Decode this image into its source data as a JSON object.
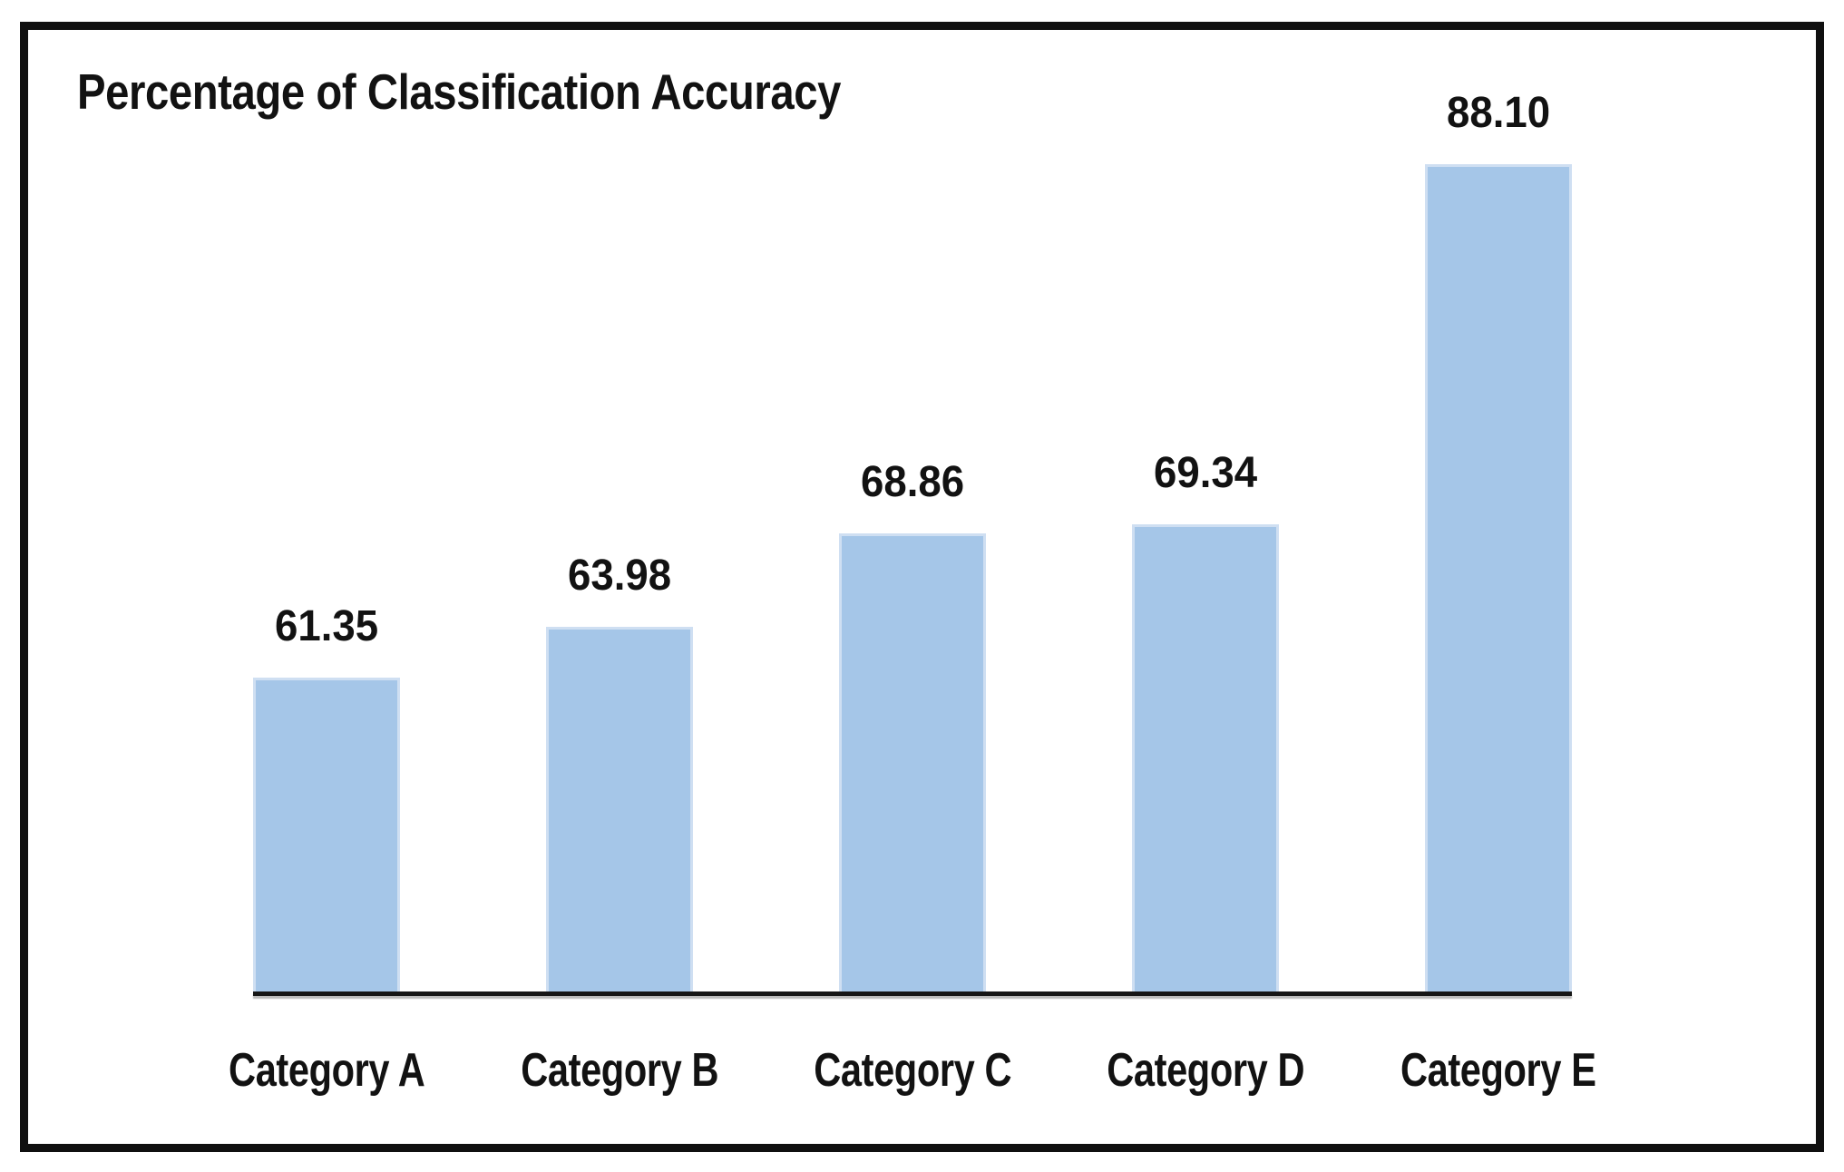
{
  "figure": {
    "background": "#ffffff",
    "frame_color": "#101010"
  },
  "chart_data": {
    "type": "bar",
    "title": "Percentage of Classification Accuracy",
    "categories": [
      "Category A",
      "Category B",
      "Category C",
      "Category D",
      "Category E"
    ],
    "values": [
      61.35,
      63.98,
      68.86,
      69.34,
      88.1
    ],
    "value_labels": [
      "61.35",
      "63.98",
      "68.86",
      "69.34",
      "88.10"
    ],
    "xlabel": "",
    "ylabel": "",
    "ylim": [
      45,
      90
    ],
    "grid": false,
    "legend": false,
    "value_labels_shown": true,
    "bar_color": "#a5c6e8",
    "bar_edge_color": "#cfdff2",
    "axis_color": "#161616",
    "text_color": "#121212"
  }
}
